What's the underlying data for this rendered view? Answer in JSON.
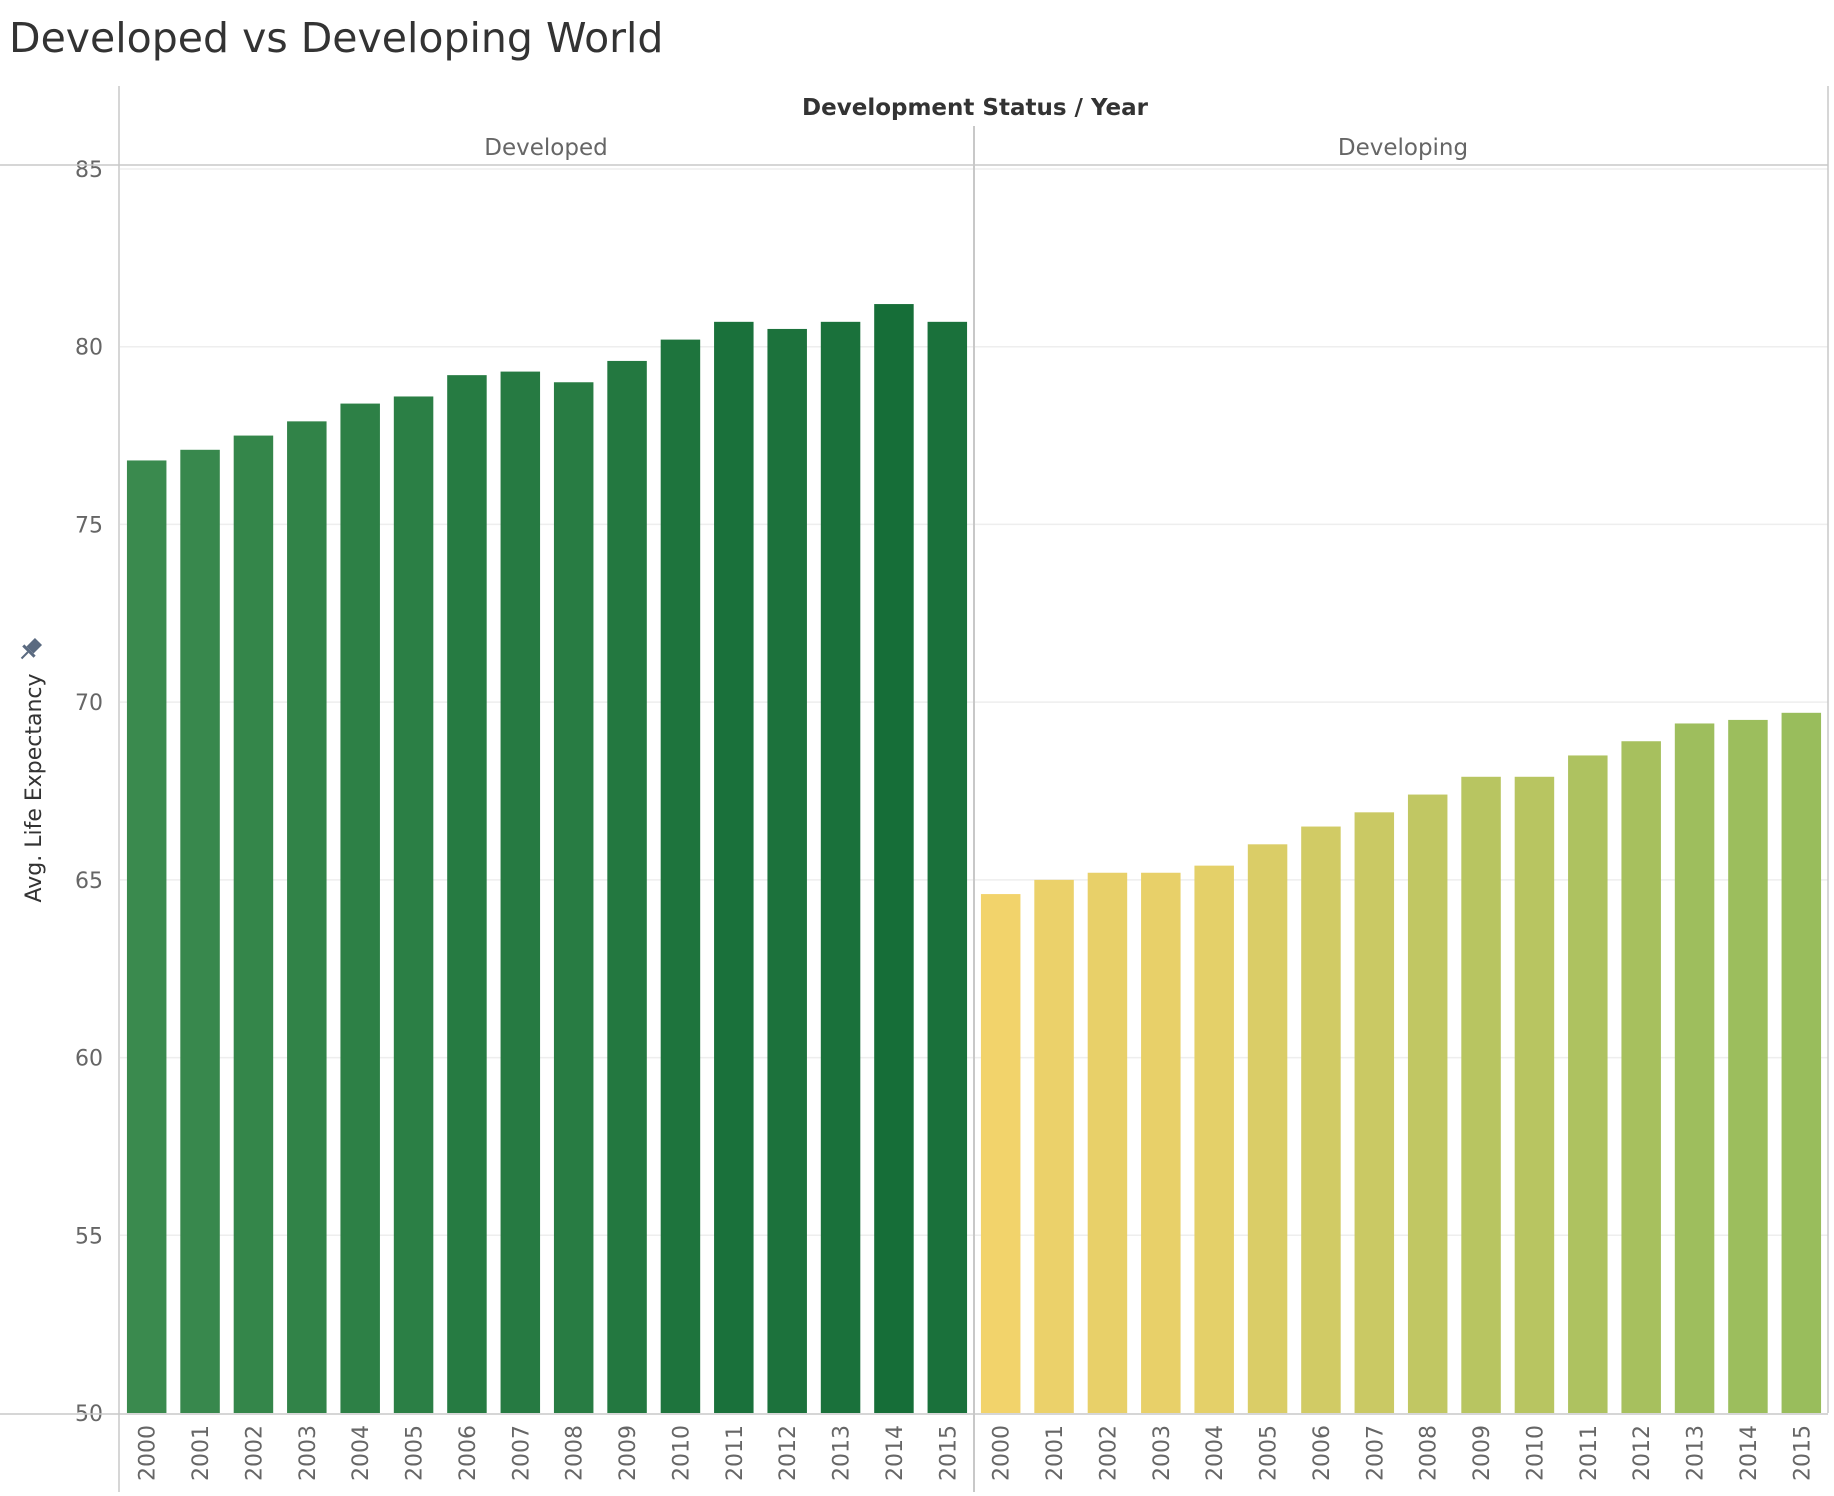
{
  "title": "Developed vs Developing World",
  "chart_data": {
    "type": "bar",
    "title": "Developed vs Developing World",
    "column_header": "Development Status / Year",
    "ylabel": "Avg. Life Expectancy",
    "ylim": [
      50,
      85
    ],
    "yticks": [
      50,
      55,
      60,
      65,
      70,
      75,
      80,
      85
    ],
    "grid": true,
    "categories": [
      "2000",
      "2001",
      "2002",
      "2003",
      "2004",
      "2005",
      "2006",
      "2007",
      "2008",
      "2009",
      "2010",
      "2011",
      "2012",
      "2013",
      "2014",
      "2015"
    ],
    "series": [
      {
        "name": "Developed",
        "values": [
          76.8,
          77.1,
          77.5,
          77.9,
          78.4,
          78.6,
          79.2,
          79.3,
          79.0,
          79.6,
          80.2,
          80.7,
          80.5,
          80.7,
          81.2,
          80.7
        ]
      },
      {
        "name": "Developing",
        "values": [
          64.6,
          65.0,
          65.2,
          65.2,
          65.4,
          66.0,
          66.5,
          66.9,
          67.4,
          67.9,
          67.9,
          68.5,
          68.9,
          69.4,
          69.5,
          69.7
        ]
      }
    ],
    "colors": {
      "developed_light": "#3a8a4e",
      "developed_dark": "#166e38",
      "developing_light": "#f2d36b",
      "developing_dark": "#99bd5c",
      "grid": "#eeeeee",
      "border": "#c8c8c8"
    }
  }
}
